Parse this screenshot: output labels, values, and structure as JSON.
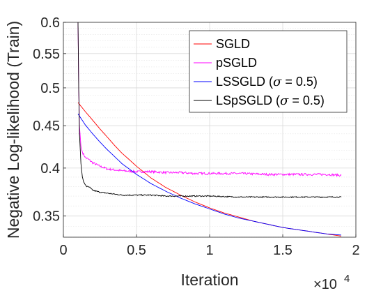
{
  "chart_data": {
    "type": "line",
    "title": "",
    "xlabel": "Iteration",
    "ylabel": "Negative Log-likelihood (Train)",
    "x_multiplier_label": "×10",
    "x_multiplier_exp": "4",
    "x_scale_factor": 10000,
    "xlim": [
      0,
      20000
    ],
    "ylim": [
      0.33,
      0.6
    ],
    "yscale": "log",
    "grid": true,
    "minor_grid": true,
    "legend_position": "top-right",
    "xticks": [
      0,
      5000,
      10000,
      15000,
      20000
    ],
    "xtick_labels": [
      "0",
      "0.5",
      "1",
      "1.5",
      "2"
    ],
    "yticks": [
      0.35,
      0.4,
      0.45,
      0.5,
      0.55,
      0.6
    ],
    "ytick_labels": [
      "0.35",
      "0.4",
      "0.45",
      "0.5",
      "0.55",
      "0.6"
    ],
    "series": [
      {
        "name": "SGLD",
        "legend_prefix": "SGLD",
        "legend_sigma": "",
        "legend_suffix": "",
        "color": "#ff0000",
        "noise": 0,
        "x": [
          1000,
          1500,
          2000,
          2500,
          3000,
          3500,
          4000,
          5000,
          6000,
          7000,
          8000,
          9000,
          10000,
          11000,
          12000,
          13000,
          14000,
          15000,
          16000,
          17000,
          18000,
          19000
        ],
        "y": [
          0.48,
          0.468,
          0.457,
          0.446,
          0.436,
          0.426,
          0.417,
          0.402,
          0.389,
          0.379,
          0.371,
          0.364,
          0.358,
          0.353,
          0.349,
          0.345,
          0.342,
          0.339,
          0.337,
          0.335,
          0.333,
          0.331
        ]
      },
      {
        "name": "pSGLD",
        "legend_prefix": "pSGLD",
        "legend_sigma": "",
        "legend_suffix": "",
        "color": "#ff00ff",
        "noise": 0.0012,
        "x": [
          1000,
          1050,
          1100,
          1200,
          1300,
          1500,
          1700,
          2000,
          2500,
          3000,
          4000,
          5000,
          6000,
          7000,
          8000,
          9000,
          10000,
          12000,
          14000,
          16000,
          18000,
          19000
        ],
        "y": [
          0.6,
          0.5,
          0.45,
          0.425,
          0.418,
          0.412,
          0.41,
          0.406,
          0.402,
          0.399,
          0.397,
          0.396,
          0.396,
          0.395,
          0.395,
          0.394,
          0.394,
          0.394,
          0.393,
          0.393,
          0.393,
          0.392
        ]
      },
      {
        "name": "LSSGLD (σ = 0.5)",
        "legend_prefix": "LSSGLD (",
        "legend_sigma": "σ",
        "legend_suffix": " = 0.5)",
        "color": "#0000ff",
        "noise": 0,
        "x": [
          1000,
          1500,
          2000,
          2500,
          3000,
          3500,
          4000,
          5000,
          6000,
          7000,
          8000,
          9000,
          10000,
          11000,
          12000,
          13000,
          14000,
          15000,
          16000,
          17000,
          18000,
          19000
        ],
        "y": [
          0.465,
          0.451,
          0.44,
          0.43,
          0.421,
          0.413,
          0.405,
          0.393,
          0.383,
          0.375,
          0.368,
          0.362,
          0.357,
          0.352,
          0.348,
          0.345,
          0.342,
          0.339,
          0.337,
          0.335,
          0.333,
          0.332
        ]
      },
      {
        "name": "LSpSGLD (σ = 0.5)",
        "legend_prefix": "LSpSGLD (",
        "legend_sigma": "σ",
        "legend_suffix": " = 0.5)",
        "color": "#000000",
        "noise": 0.0006,
        "x": [
          1000,
          1050,
          1100,
          1200,
          1300,
          1400,
          1600,
          1800,
          2000,
          2500,
          3000,
          3500,
          4000,
          5000,
          6000,
          7000,
          8000,
          10000,
          12000,
          14000,
          16000,
          18000,
          19000
        ],
        "y": [
          0.6,
          0.5,
          0.44,
          0.405,
          0.39,
          0.384,
          0.38,
          0.379,
          0.376,
          0.374,
          0.373,
          0.372,
          0.371,
          0.371,
          0.371,
          0.37,
          0.37,
          0.37,
          0.369,
          0.369,
          0.369,
          0.369,
          0.369
        ]
      }
    ]
  }
}
